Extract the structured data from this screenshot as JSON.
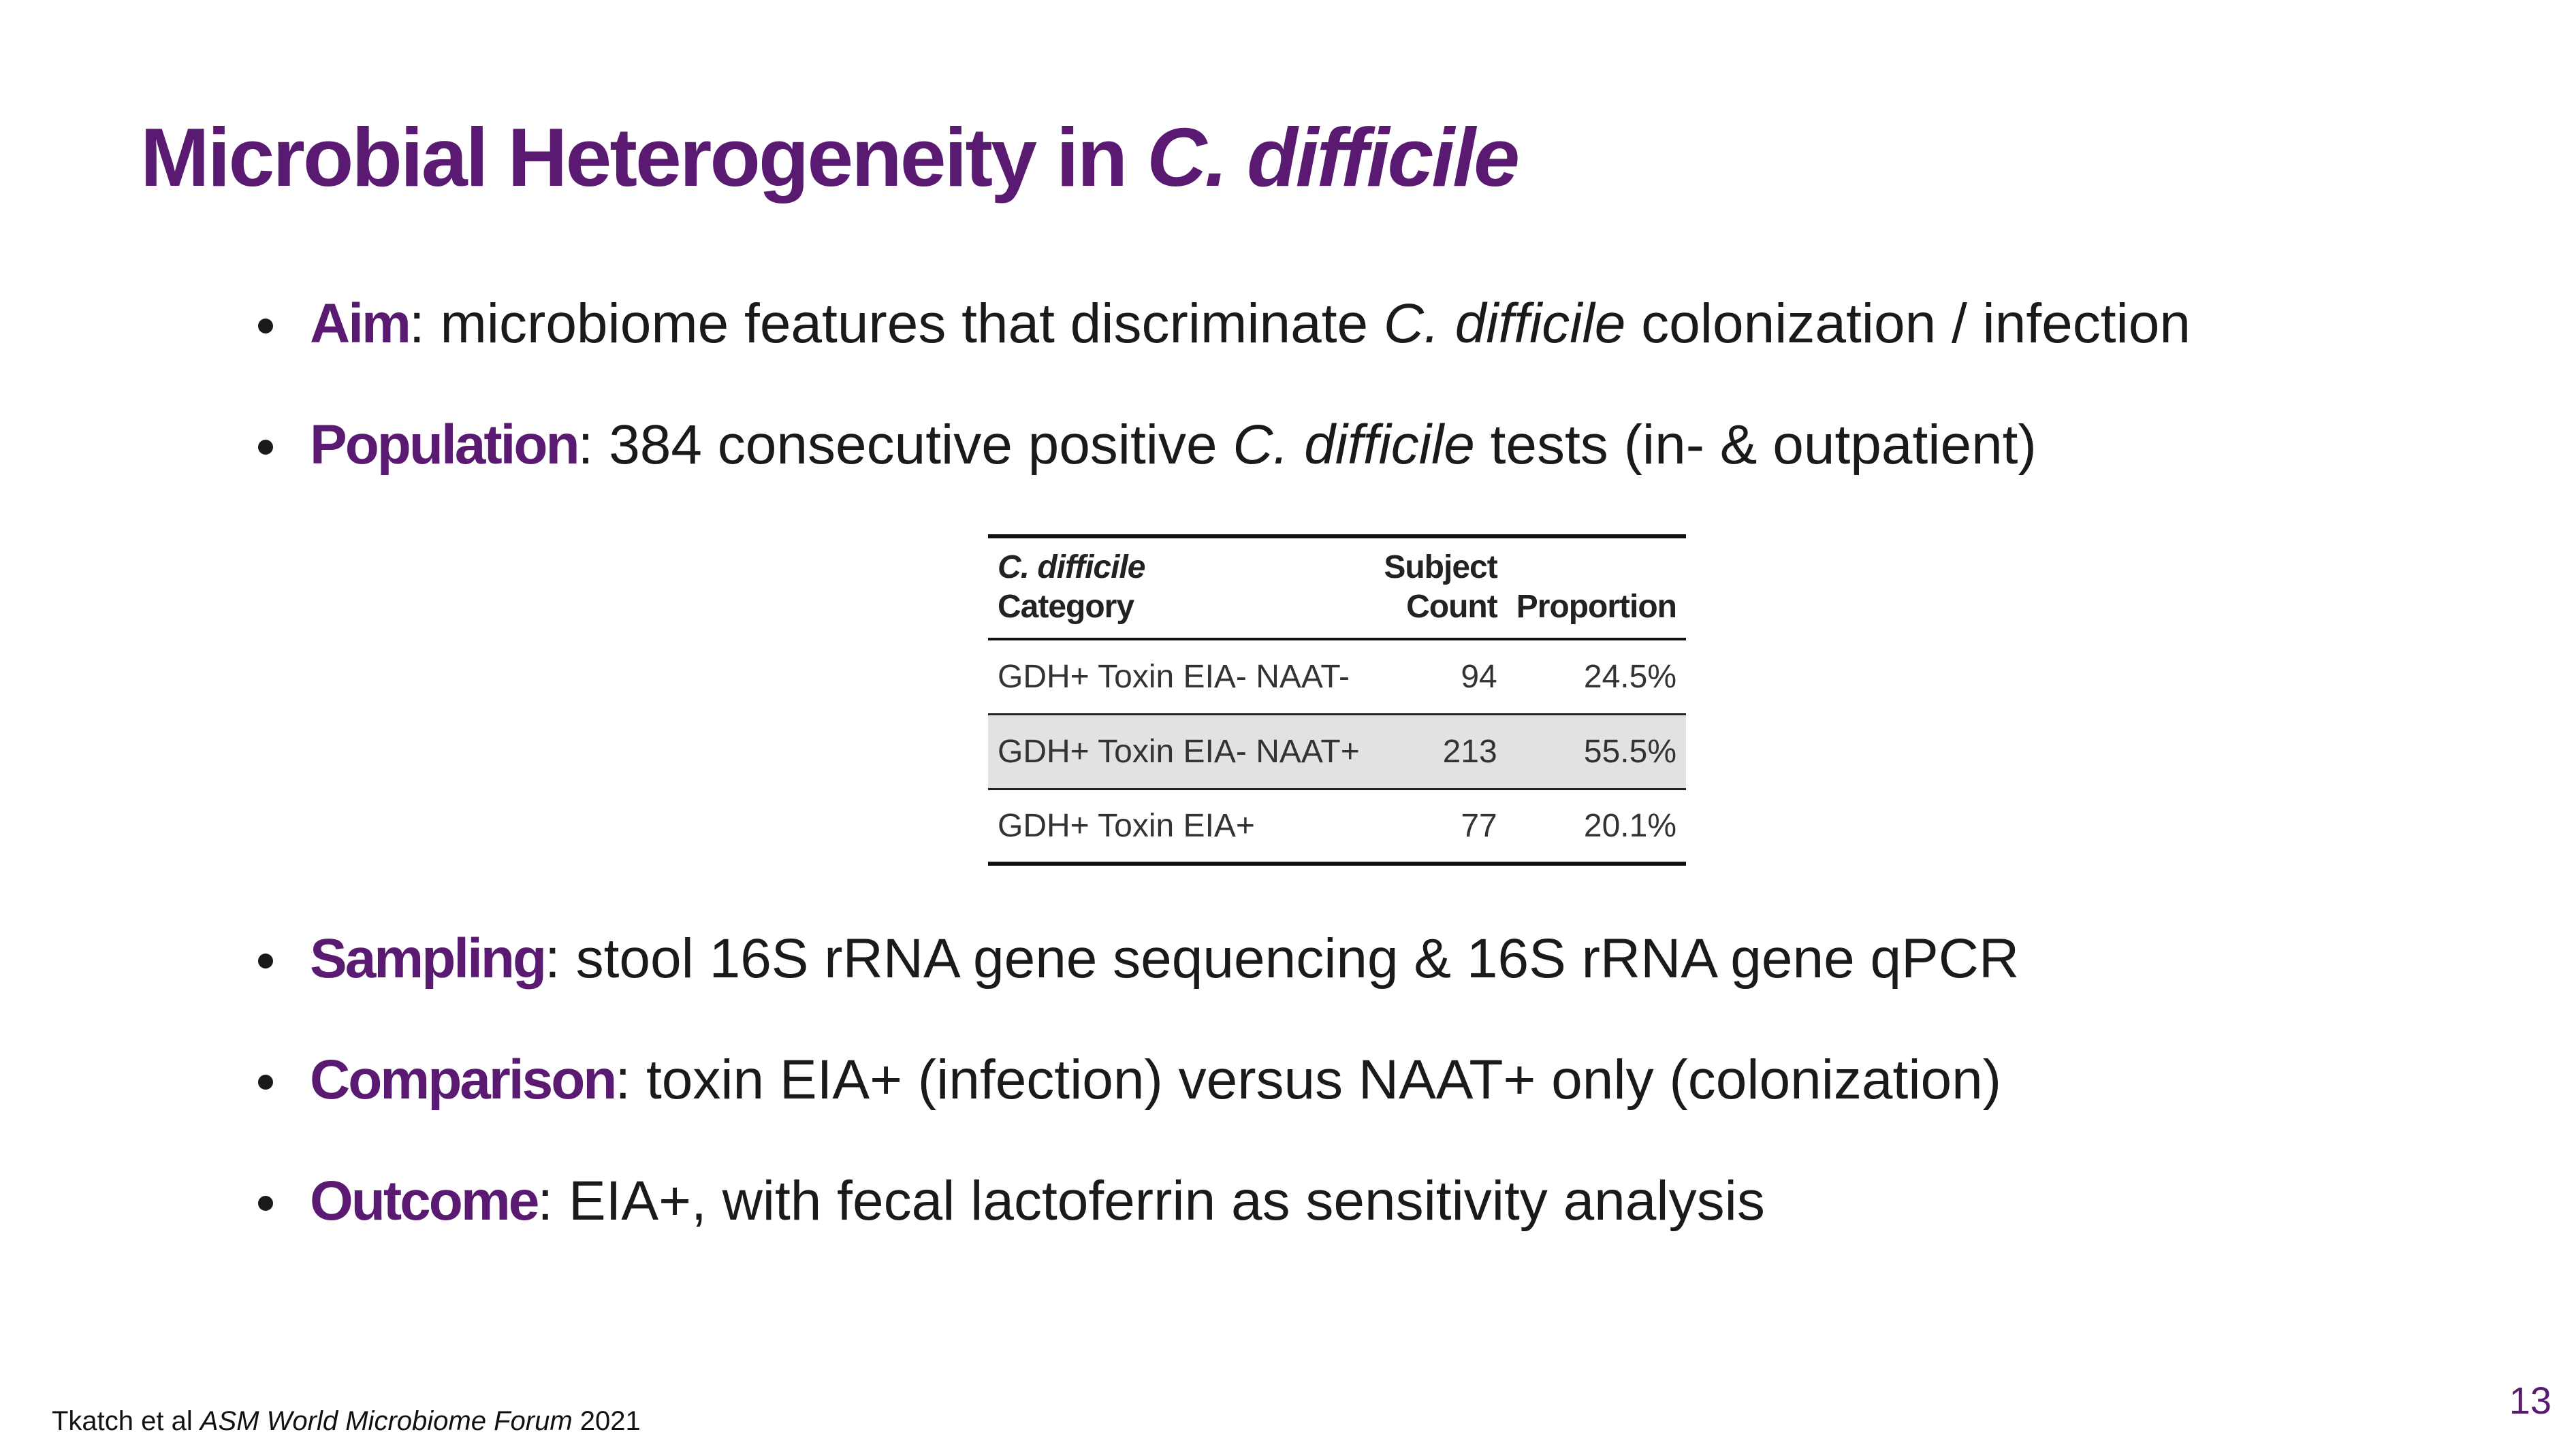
{
  "slide": {
    "title": {
      "main": "Microbial Heterogeneity in ",
      "italic": "C. difficile"
    },
    "bullets_top": [
      {
        "key": "Aim",
        "pre": ": microbiome features that discriminate ",
        "italic": "C. difficile",
        "post": " colonization / infection"
      },
      {
        "key": "Population",
        "pre": ": 384 consecutive positive ",
        "italic": "C. difficile",
        "post": " tests (in- & outpatient)"
      }
    ],
    "table": {
      "headers": {
        "category_italic": "C. difficile",
        "category": "Category",
        "count_line1": "Subject",
        "count_line2": "Count",
        "proportion": "Proportion"
      },
      "rows": [
        {
          "category": "GDH+ Toxin EIA- NAAT-",
          "count": "94",
          "proportion": "24.5%",
          "shaded": false
        },
        {
          "category": "GDH+ Toxin EIA- NAAT+",
          "count": "213",
          "proportion": "55.5%",
          "shaded": true
        },
        {
          "category": "GDH+ Toxin EIA+",
          "count": "77",
          "proportion": "20.1%",
          "shaded": false
        }
      ]
    },
    "bullets_bottom": [
      {
        "key": "Sampling",
        "text": ": stool 16S rRNA gene sequencing & 16S rRNA gene qPCR"
      },
      {
        "key": "Comparison",
        "text": ": toxin EIA+ (infection) versus NAAT+ only (colonization)"
      },
      {
        "key": "Outcome",
        "text": ": EIA+, with fecal lactoferrin as sensitivity analysis"
      }
    ],
    "footnote": {
      "authors": "Tkatch et al ",
      "venue": "ASM World Microbiome Forum",
      "year": " 2021"
    },
    "page_number": "13"
  },
  "colors": {
    "accent_purple": "#5a1a72",
    "text": "#1a1a1a",
    "table_shade": "#e2e2e2"
  }
}
